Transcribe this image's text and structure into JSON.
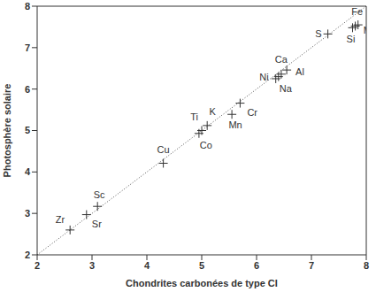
{
  "chart_data": {
    "type": "scatter",
    "x_label": "Chondrites carbonées de type CI",
    "y_label": "Photosphère solaire",
    "labels": [
      "Zr",
      "Sr",
      "Sc",
      "Cu",
      "Co",
      "Ti",
      "K",
      "Mn",
      "Cr",
      "Ni",
      "Na",
      "Ca",
      "Al",
      "S",
      "Fe",
      "Si",
      "Mg"
    ],
    "x": [
      2.6,
      2.9,
      3.1,
      4.3,
      4.95,
      5.0,
      5.1,
      5.55,
      5.7,
      6.35,
      6.4,
      6.45,
      6.55,
      7.3,
      7.8,
      7.75,
      7.85
    ],
    "values": [
      2.6,
      2.97,
      3.17,
      4.21,
      4.93,
      5.0,
      5.12,
      5.39,
      5.66,
      6.25,
      6.3,
      6.36,
      6.46,
      7.33,
      7.52,
      7.48,
      7.55
    ],
    "xlim": [
      2,
      8
    ],
    "ylim": [
      2,
      8
    ],
    "xticks": [
      2,
      3,
      4,
      5,
      6,
      7,
      8
    ],
    "yticks": [
      2,
      3,
      4,
      5,
      6,
      7,
      8
    ],
    "grid": false,
    "color": "#333333",
    "marker": "plus"
  }
}
